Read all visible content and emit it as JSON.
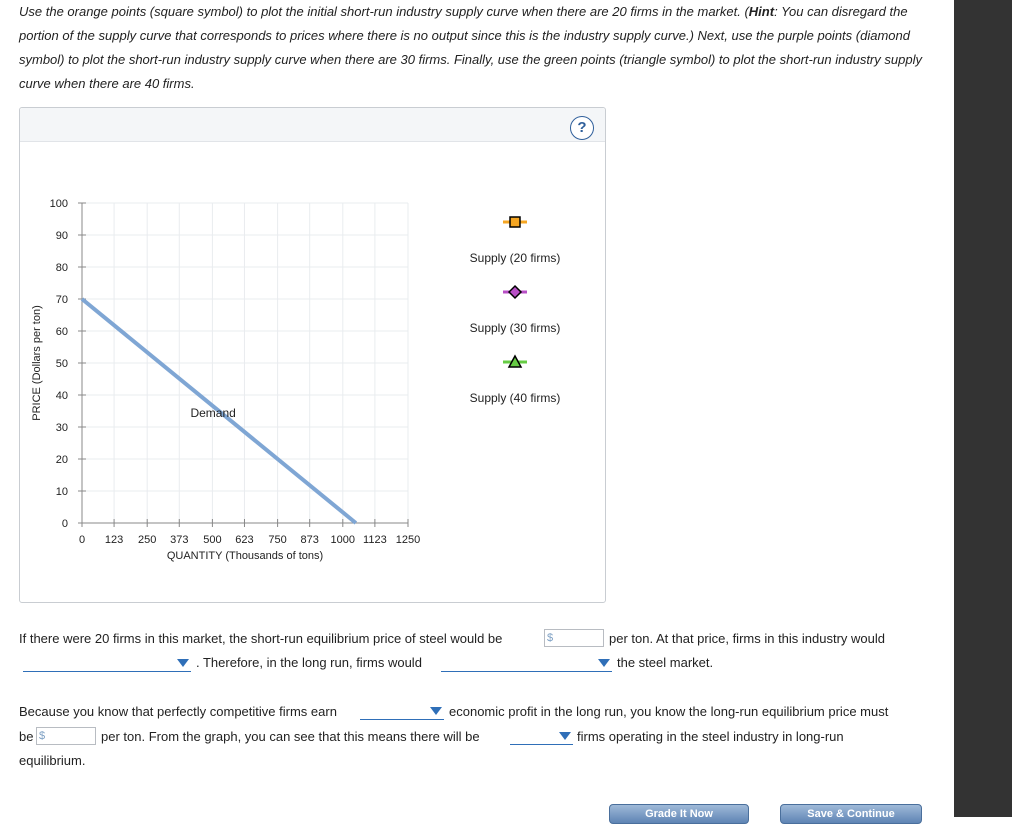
{
  "instructions": {
    "part1": "Use the orange points (square symbol) to plot the initial short-run industry supply curve when there are 20 firms in the market. (",
    "hint_label": "Hint",
    "part2": ": You can disregard the portion of the supply curve that corresponds to prices where there is no output since this is the industry supply curve.) Next, use the purple points (diamond symbol) to plot the short-run industry supply curve when there are 30 firms. Finally, use the green points (triangle symbol) to plot the short-run industry supply curve when there are 40 firms."
  },
  "help_label": "?",
  "chart_data": {
    "type": "line",
    "xlabel": "QUANTITY (Thousands of tons)",
    "ylabel": "PRICE (Dollars per ton)",
    "xlim": [
      0,
      1250
    ],
    "ylim": [
      0,
      100
    ],
    "x_ticks": [
      0,
      123,
      250,
      373,
      500,
      623,
      750,
      873,
      1000,
      1123,
      1250
    ],
    "y_ticks": [
      0,
      10,
      20,
      30,
      40,
      50,
      60,
      70,
      80,
      90,
      100
    ],
    "grid": true,
    "series": [
      {
        "name": "Demand",
        "x": [
          0,
          1050
        ],
        "y": [
          70,
          0
        ],
        "color": "#7fa6d4"
      }
    ],
    "annotations": [
      {
        "text": "Demand",
        "x": 600,
        "y": 35
      }
    ],
    "legend": {
      "placement": "right",
      "items": [
        {
          "label": "Supply (20 firms)",
          "symbol": "square",
          "color": "#f5a623"
        },
        {
          "label": "Supply (30 firms)",
          "symbol": "diamond",
          "color": "#b84fc6"
        },
        {
          "label": "Supply (40 firms)",
          "symbol": "triangle",
          "color": "#66cc44"
        }
      ]
    }
  },
  "questions": {
    "q1_a": "If there were 20 firms in this market, the short-run equilibrium price of steel would be",
    "q1_b": "per ton. At that price, firms in this industry would",
    "q1_c": ". Therefore, in the long run, firms would",
    "q1_d": "the steel market.",
    "q2_a": "Because you know that perfectly competitive firms earn",
    "q2_b": "economic profit in the long run, you know the long-run equilibrium price must",
    "q2_c": "be",
    "q2_d": "per ton. From the graph, you can see that this means there will be",
    "q2_e": "firms operating in the steel industry in long-run",
    "q2_f": "equilibrium.",
    "currency_symbol": "$"
  },
  "buttons": {
    "grade": "Grade It Now",
    "save": "Save & Continue"
  },
  "colors": {
    "sidebar": "#333333",
    "accent": "#2f6fb8"
  }
}
